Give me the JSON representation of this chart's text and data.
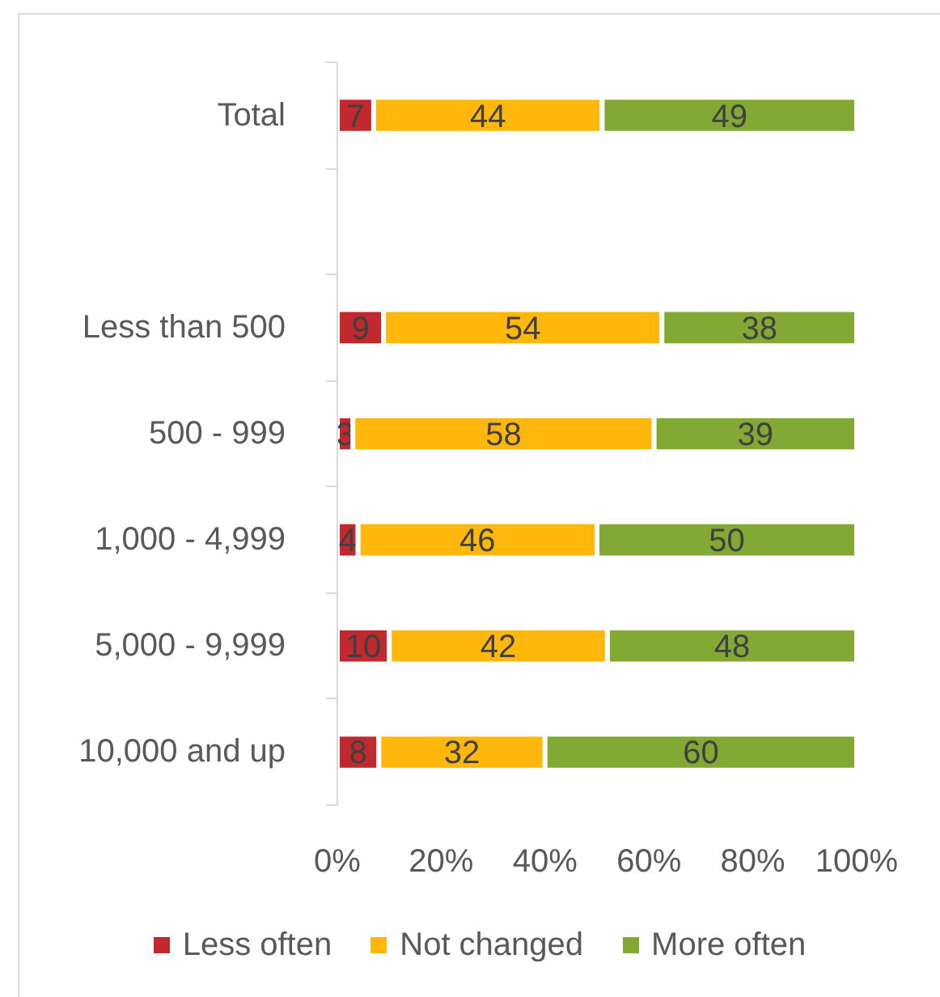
{
  "chart_data": {
    "type": "bar",
    "orientation": "horizontal",
    "stacked": true,
    "categories": [
      "Total",
      null,
      "Less than 500",
      "500 - 999",
      "1,000 - 4,999",
      "5,000 - 9,999",
      "10,000 and up"
    ],
    "series": [
      {
        "name": "Less often",
        "color": "#c1292e",
        "values": [
          7,
          null,
          8.9,
          3,
          4,
          10,
          8
        ],
        "value_labels": [
          "7",
          null,
          "9",
          "3",
          "4",
          "10",
          "8"
        ]
      },
      {
        "name": "Not changed",
        "color": "#ffb70b",
        "values": [
          44,
          null,
          53.6,
          58,
          46,
          42,
          32
        ],
        "value_labels": [
          "44",
          null,
          "54",
          "58",
          "46",
          "42",
          "32"
        ]
      },
      {
        "name": "More often",
        "color": "#82a934",
        "values": [
          49,
          null,
          37.5,
          39,
          50,
          48,
          60
        ],
        "value_labels": [
          "49",
          null,
          "38",
          "39",
          "50",
          "48",
          "60"
        ]
      }
    ],
    "xlim": [
      0,
      100
    ],
    "xticks": [
      {
        "value": 0,
        "label": "0%"
      },
      {
        "value": 20,
        "label": "20%"
      },
      {
        "value": 40,
        "label": "40%"
      },
      {
        "value": 60,
        "label": "60%"
      },
      {
        "value": 80,
        "label": "80%"
      },
      {
        "value": 100,
        "label": "100%"
      }
    ],
    "grid": false,
    "legend": "bottom"
  }
}
